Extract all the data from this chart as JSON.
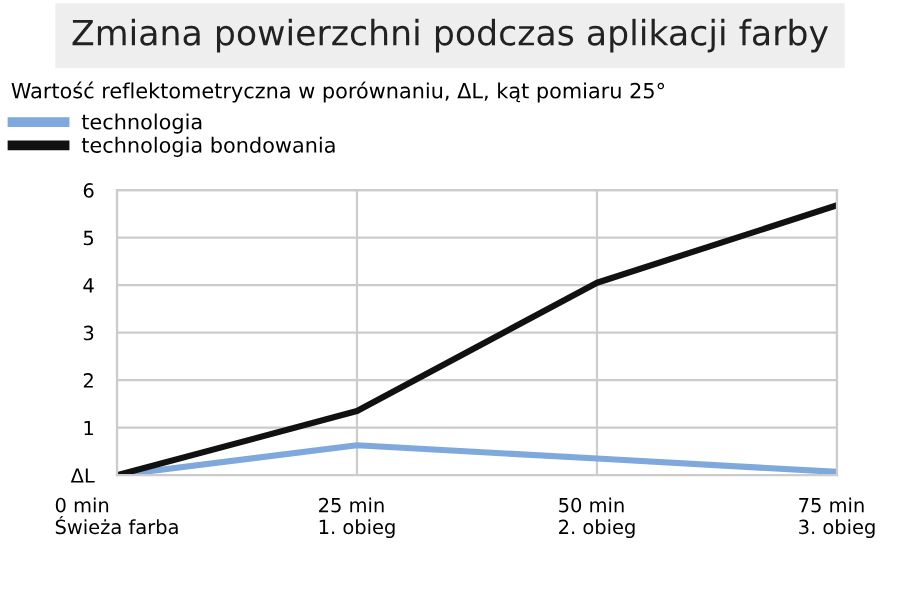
{
  "chart_data": {
    "type": "line",
    "title": "Zmiana powierzchni podczas aplikacji farby",
    "subtitle": "Wartość reflektometryczna w porównaniu, ΔL, kąt pomiaru 25°",
    "categories": [
      "0 min\nŚwieża farba",
      "25 min\n1. obieg",
      "50 min\n2. obieg",
      "75 min\n3. obieg"
    ],
    "series": [
      {
        "name": "technologia",
        "color": "#7fa8dc",
        "values": [
          0,
          0.63,
          0.35,
          0.07
        ]
      },
      {
        "name": "technologia bondowania",
        "color": "#111111",
        "values": [
          0,
          1.35,
          4.05,
          5.68
        ]
      }
    ],
    "ylim": [
      0,
      6
    ],
    "yticks": [
      {
        "value": 0,
        "label": "ΔL"
      },
      1,
      2,
      3,
      4,
      5,
      6
    ],
    "grid": true,
    "legend": "top left",
    "marker": "none",
    "line_style": "solid"
  }
}
